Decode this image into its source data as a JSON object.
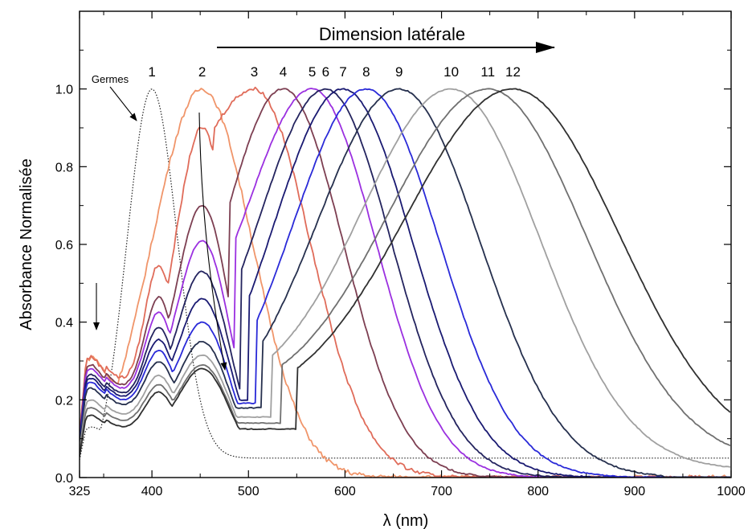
{
  "chart_data": {
    "type": "line",
    "title": "",
    "xlabel": "λ (nm)",
    "ylabel": "Absorbance Normalisée",
    "xlim": [
      325,
      1000
    ],
    "ylim": [
      0.0,
      1.2
    ],
    "x_ticks": [
      325,
      400,
      500,
      600,
      700,
      800,
      900,
      1000
    ],
    "x_tick_labels": [
      "325",
      "400",
      "500",
      "600",
      "700",
      "800",
      "900",
      "1000"
    ],
    "y_ticks": [
      0.0,
      0.2,
      0.4,
      0.6,
      0.8,
      1.0
    ],
    "y_tick_labels": [
      "0.0",
      "0.2",
      "0.4",
      "0.6",
      "0.8",
      "1.0"
    ],
    "grid": false,
    "legend": "none",
    "annotations": {
      "lateral_dimension": "Dimension latérale",
      "seeds": "Germes"
    },
    "series": [
      {
        "label": "Germes",
        "color": "#222222",
        "dotted": true,
        "peak": 400,
        "width": 26,
        "dip": 0,
        "valley": 0,
        "uv": 0.13,
        "b": 0.05,
        "cutoff": false,
        "noise": 0
      },
      {
        "label": "1",
        "color": "#f0956a",
        "peak": 452,
        "width": 52,
        "dip": 0,
        "valley": 0,
        "uv": 0.31,
        "b": 0.0,
        "cutoff": false,
        "noise": 0.012
      },
      {
        "label": "2",
        "color": "#e06c5a",
        "peak": 506,
        "width": 58,
        "dip": 465,
        "valley": 0.9,
        "uv": 0.31,
        "b": 0.0,
        "cutoff": false,
        "noise": 0.01
      },
      {
        "label": "3",
        "color": "#7d3f52",
        "peak": 536,
        "width": 62,
        "dip": 480,
        "valley": 0.7,
        "uv": 0.29,
        "b": 0.0,
        "cutoff": false,
        "noise": 0.004
      },
      {
        "label": "4",
        "color": "#9b30e0",
        "peak": 566,
        "width": 66,
        "dip": 486,
        "valley": 0.61,
        "uv": 0.28,
        "b": 0.0,
        "cutoff": true,
        "noise": 0.003
      },
      {
        "label": "5",
        "color": "#24245f",
        "peak": 580,
        "width": 68,
        "dip": 492,
        "valley": 0.53,
        "uv": 0.265,
        "b": 0.0,
        "cutoff": true,
        "noise": 0.003
      },
      {
        "label": "6",
        "color": "#1a1a72",
        "peak": 598,
        "width": 72,
        "dip": 500,
        "valley": 0.46,
        "uv": 0.255,
        "b": 0.0,
        "cutoff": true,
        "noise": 0.003
      },
      {
        "label": "7",
        "color": "#2a2ad8",
        "peak": 622,
        "width": 76,
        "dip": 508,
        "valley": 0.4,
        "uv": 0.245,
        "b": 0.0,
        "cutoff": true,
        "noise": 0.003
      },
      {
        "label": "8",
        "color": "#26304e",
        "peak": 656,
        "width": 84,
        "dip": 515,
        "valley": 0.35,
        "uv": 0.23,
        "b": 0.0,
        "cutoff": true,
        "noise": 0.003
      },
      {
        "label": "9",
        "color": "#a0a0a0",
        "peak": 710,
        "width": 92,
        "dip": 525,
        "valley": 0.315,
        "uv": 0.2,
        "b": 0.02,
        "cutoff": false,
        "noise": 0.002
      },
      {
        "label": "10",
        "color": "#707070",
        "peak": 748,
        "width": 102,
        "dip": 535,
        "valley": 0.29,
        "uv": 0.18,
        "b": 0.035,
        "cutoff": false,
        "noise": 0.002
      },
      {
        "label": "11",
        "color": "#303030",
        "peak": 774,
        "width": 110,
        "dip": 550,
        "valley": 0.28,
        "uv": 0.16,
        "b": 0.05,
        "cutoff": false,
        "noise": 0.002
      }
    ],
    "peak_labels": [
      {
        "text": "1",
        "x": 400
      },
      {
        "text": "2",
        "x": 452
      },
      {
        "text": "3",
        "x": 506
      },
      {
        "text": "4",
        "x": 536
      },
      {
        "text": "5",
        "x": 566
      },
      {
        "text": "6",
        "x": 580
      },
      {
        "text": "7",
        "x": 598
      },
      {
        "text": "8",
        "x": 622
      },
      {
        "text": "9",
        "x": 656
      },
      {
        "text": "10",
        "x": 710
      },
      {
        "text": "11",
        "x": 748
      },
      {
        "text": "12",
        "x": 774
      }
    ]
  }
}
